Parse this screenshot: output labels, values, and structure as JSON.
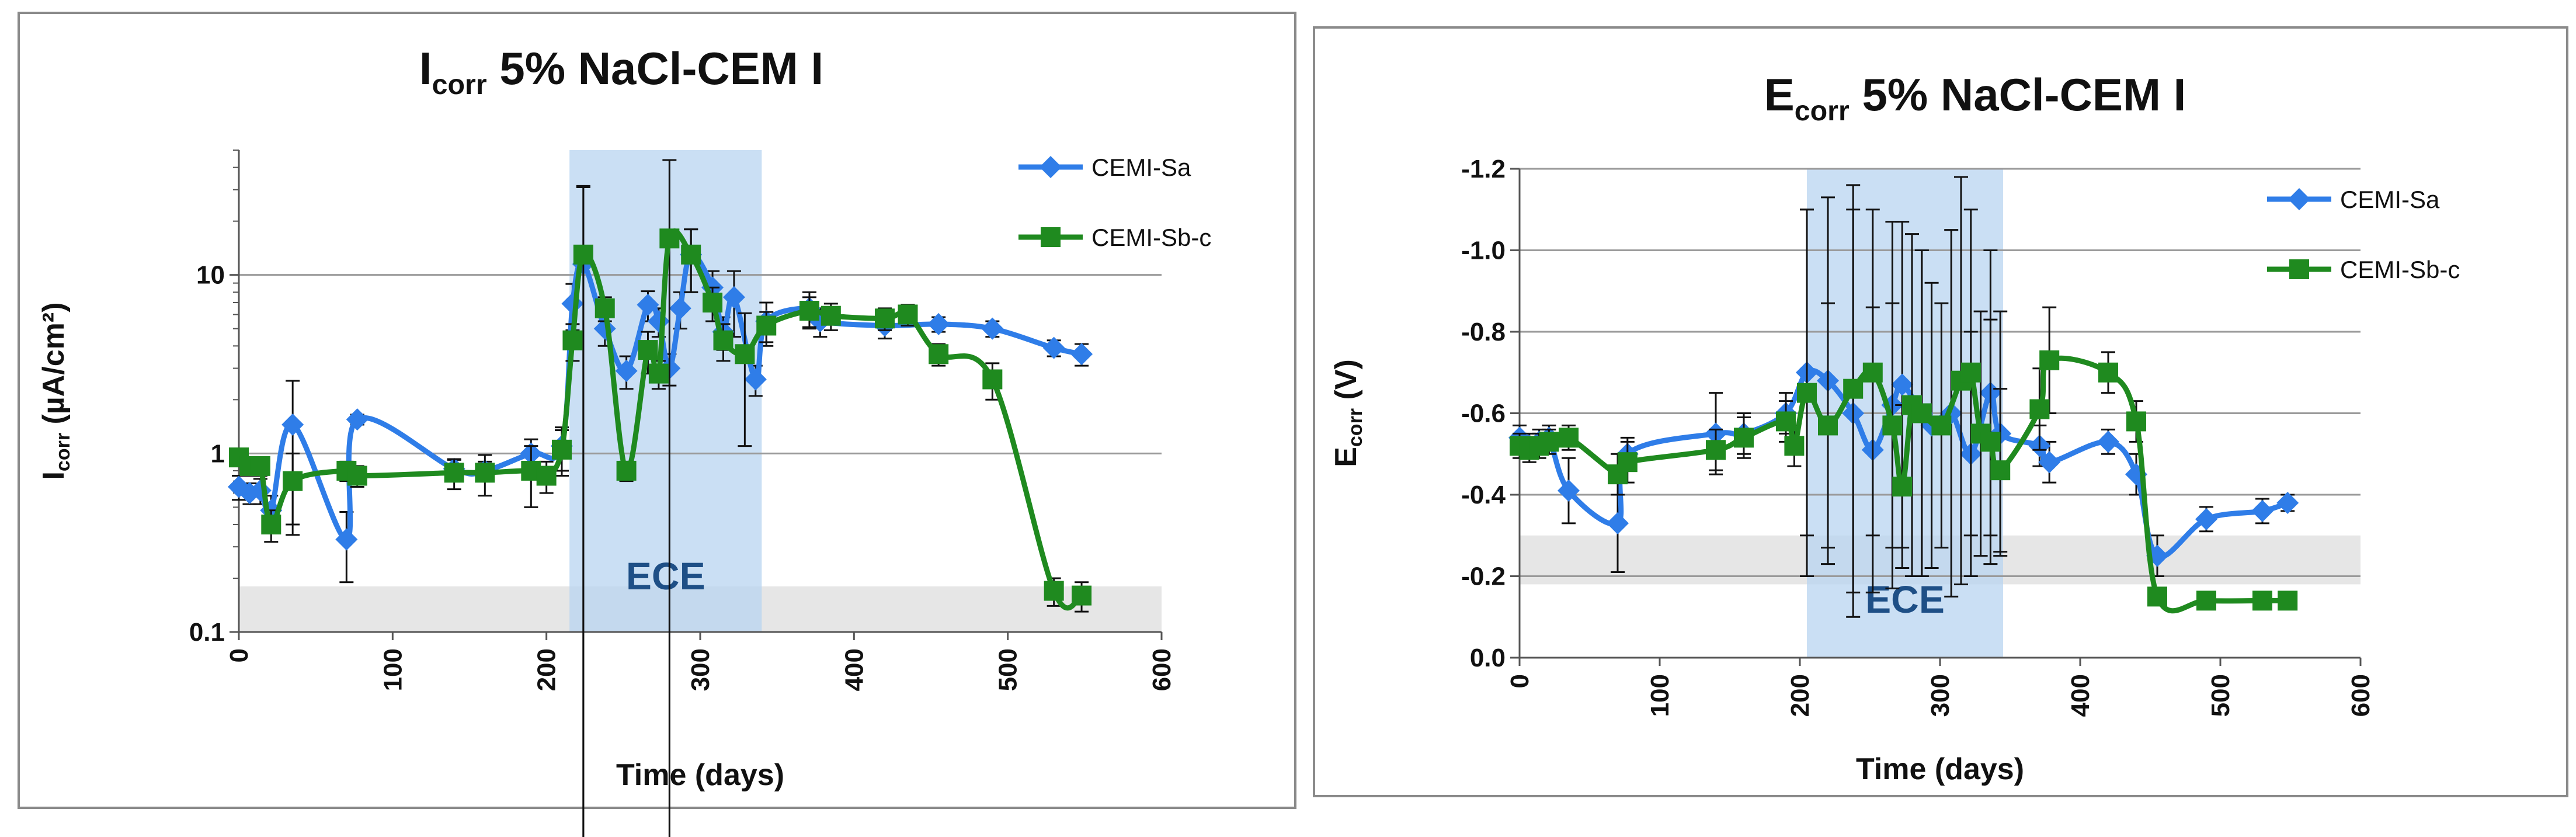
{
  "chart_data": [
    {
      "type": "line",
      "title_main": "I",
      "title_sub": "corr",
      "title_rest": " 5% NaCl-CEM I",
      "xlabel": "Time (days)",
      "ylabel_main": "I",
      "ylabel_sub": "corr",
      "ylabel_rest": " (µA/cm²)",
      "y_scale": "log",
      "xlim": [
        0,
        600
      ],
      "ylim": [
        0.1,
        50
      ],
      "x_ticks": [
        0,
        100,
        200,
        300,
        400,
        500,
        600
      ],
      "y_ticks": [
        0.1,
        1,
        10
      ],
      "y_tick_labels": [
        "0.1",
        "1",
        "10"
      ],
      "grid": "horizontal",
      "legend_position": "top-right",
      "ece_label": "ECE",
      "ece_range": [
        215,
        340
      ],
      "threshold_band": [
        0.1,
        0.18
      ],
      "series": [
        {
          "name": "CEMI-Sa",
          "color": "#2f7de8",
          "marker": "diamond",
          "points": [
            [
              0,
              0.65,
              0.1
            ],
            [
              7,
              0.6,
              0.08
            ],
            [
              14,
              0.62,
              0.1
            ],
            [
              21,
              0.48,
              0.1
            ],
            [
              35,
              1.45,
              1.1
            ],
            [
              70,
              0.33,
              0.14
            ],
            [
              77,
              1.55,
              0.1
            ],
            [
              140,
              0.82,
              0.1
            ],
            [
              160,
              0.8,
              0.1
            ],
            [
              190,
              1.0,
              0.2
            ],
            [
              210,
              1.1,
              0.3
            ],
            [
              217,
              6.9,
              2.0
            ],
            [
              224,
              11.5,
              20
            ],
            [
              238,
              5.0,
              1.0
            ],
            [
              252,
              2.9,
              0.6
            ],
            [
              266,
              6.8,
              1.3
            ],
            [
              273,
              5.5,
              1.0
            ],
            [
              280,
              3.0,
              0.6
            ],
            [
              287,
              6.5,
              1.5
            ],
            [
              294,
              13.0,
              5
            ],
            [
              308,
              8.5,
              2.0
            ],
            [
              315,
              4.8,
              1.0
            ],
            [
              322,
              7.5,
              3.0
            ],
            [
              336,
              2.6,
              0.5
            ],
            [
              343,
              5.5,
              1.5
            ],
            [
              371,
              6.5,
              1.5
            ],
            [
              378,
              5.5,
              1.0
            ],
            [
              420,
              5.2,
              0.8
            ],
            [
              455,
              5.3,
              0.5
            ],
            [
              490,
              5.0,
              0.5
            ],
            [
              530,
              3.9,
              0.4
            ],
            [
              548,
              3.6,
              0.5
            ]
          ]
        },
        {
          "name": "CEMI-Sb-c",
          "color": "#1f8a1f",
          "marker": "square",
          "points": [
            [
              0,
              0.95,
              0.1
            ],
            [
              7,
              0.85,
              0.1
            ],
            [
              14,
              0.85,
              0.1
            ],
            [
              21,
              0.4,
              0.08
            ],
            [
              35,
              0.7,
              0.3
            ],
            [
              70,
              0.8,
              0.1
            ],
            [
              77,
              0.75,
              0.1
            ],
            [
              140,
              0.78,
              0.15
            ],
            [
              160,
              0.78,
              0.2
            ],
            [
              190,
              0.8,
              0.3
            ],
            [
              200,
              0.75,
              0.15
            ],
            [
              210,
              1.05,
              0.3
            ],
            [
              217,
              4.3,
              1.0
            ],
            [
              224,
              13.0,
              18
            ],
            [
              238,
              6.5,
              1.0
            ],
            [
              252,
              0.8,
              0.1
            ],
            [
              266,
              3.8,
              1.0
            ],
            [
              273,
              2.8,
              0.5
            ],
            [
              280,
              16.0,
              28
            ],
            [
              294,
              13.0,
              5
            ],
            [
              308,
              7.0,
              1.5
            ],
            [
              315,
              4.3,
              1.0
            ],
            [
              329,
              3.6,
              2.5
            ],
            [
              343,
              5.2,
              1.0
            ],
            [
              371,
              6.3,
              1.2
            ],
            [
              385,
              5.9,
              1.0
            ],
            [
              420,
              5.7,
              0.8
            ],
            [
              435,
              6.0,
              0.8
            ],
            [
              455,
              3.6,
              0.5
            ],
            [
              490,
              2.6,
              0.6
            ],
            [
              530,
              0.17,
              0.03
            ],
            [
              548,
              0.16,
              0.03
            ]
          ]
        }
      ]
    },
    {
      "type": "line",
      "title_main": "E",
      "title_sub": "corr",
      "title_rest": " 5% NaCl-CEM I",
      "xlabel": "Time (days)",
      "ylabel_main": "E",
      "ylabel_sub": "corr",
      "ylabel_rest": " (V)",
      "y_scale": "reversed",
      "xlim": [
        0,
        600
      ],
      "ylim": [
        0,
        -1.2
      ],
      "x_ticks": [
        0,
        100,
        200,
        300,
        400,
        500,
        600
      ],
      "y_ticks": [
        0,
        -0.2,
        -0.4,
        -0.6,
        -0.8,
        -1.0,
        -1.2
      ],
      "y_tick_labels": [
        "0.0",
        "-0.2",
        "-0.4",
        "-0.6",
        "-0.8",
        "-1.0",
        "-1.2"
      ],
      "grid": "horizontal",
      "legend_position": "top-right",
      "ece_label": "ECE",
      "ece_range": [
        205,
        345
      ],
      "threshold_band": [
        -0.18,
        -0.3
      ],
      "series": [
        {
          "name": "CEMI-Sa",
          "color": "#2f7de8",
          "marker": "diamond",
          "points": [
            [
              0,
              -0.54,
              0.03
            ],
            [
              7,
              -0.52,
              0.03
            ],
            [
              14,
              -0.53,
              0.03
            ],
            [
              21,
              -0.54,
              0.03
            ],
            [
              35,
              -0.41,
              0.08
            ],
            [
              70,
              -0.33,
              0.12
            ],
            [
              77,
              -0.5,
              0.04
            ],
            [
              140,
              -0.55,
              0.1
            ],
            [
              160,
              -0.55,
              0.05
            ],
            [
              190,
              -0.6,
              0.05
            ],
            [
              205,
              -0.7,
              0.4
            ],
            [
              220,
              -0.68,
              0.45
            ],
            [
              238,
              -0.6,
              0.5
            ],
            [
              252,
              -0.51,
              0.35
            ],
            [
              266,
              -0.62,
              0.45
            ],
            [
              273,
              -0.67,
              0.4
            ],
            [
              287,
              -0.6,
              0.4
            ],
            [
              294,
              -0.57,
              0.35
            ],
            [
              308,
              -0.6,
              0.45
            ],
            [
              322,
              -0.5,
              0.3
            ],
            [
              336,
              -0.65,
              0.35
            ],
            [
              343,
              -0.55,
              0.3
            ],
            [
              371,
              -0.52,
              0.05
            ],
            [
              378,
              -0.48,
              0.05
            ],
            [
              420,
              -0.53,
              0.03
            ],
            [
              440,
              -0.45,
              0.05
            ],
            [
              455,
              -0.25,
              0.05
            ],
            [
              490,
              -0.34,
              0.03
            ],
            [
              530,
              -0.36,
              0.03
            ],
            [
              548,
              -0.38,
              0.02
            ]
          ]
        },
        {
          "name": "CEMI-Sb-c",
          "color": "#1f8a1f",
          "marker": "square",
          "points": [
            [
              0,
              -0.52,
              0.03
            ],
            [
              7,
              -0.51,
              0.03
            ],
            [
              14,
              -0.52,
              0.03
            ],
            [
              21,
              -0.53,
              0.03
            ],
            [
              35,
              -0.54,
              0.03
            ],
            [
              70,
              -0.45,
              0.05
            ],
            [
              77,
              -0.48,
              0.05
            ],
            [
              140,
              -0.51,
              0.05
            ],
            [
              160,
              -0.54,
              0.05
            ],
            [
              190,
              -0.58,
              0.05
            ],
            [
              196,
              -0.52,
              0.05
            ],
            [
              205,
              -0.65,
              0.45
            ],
            [
              220,
              -0.57,
              0.3
            ],
            [
              238,
              -0.66,
              0.5
            ],
            [
              252,
              -0.7,
              0.4
            ],
            [
              266,
              -0.57,
              0.3
            ],
            [
              273,
              -0.42,
              0.2
            ],
            [
              280,
              -0.62,
              0.42
            ],
            [
              287,
              -0.6,
              0.4
            ],
            [
              301,
              -0.57,
              0.3
            ],
            [
              315,
              -0.68,
              0.5
            ],
            [
              322,
              -0.7,
              0.4
            ],
            [
              329,
              -0.55,
              0.3
            ],
            [
              336,
              -0.53,
              0.3
            ],
            [
              343,
              -0.46,
              0.2
            ],
            [
              371,
              -0.61,
              0.1
            ],
            [
              378,
              -0.73,
              0.13
            ],
            [
              420,
              -0.7,
              0.05
            ],
            [
              440,
              -0.58,
              0.05
            ],
            [
              455,
              -0.15,
              0.02
            ],
            [
              490,
              -0.14,
              0.02
            ],
            [
              530,
              -0.14,
              0.02
            ],
            [
              548,
              -0.14,
              0.02
            ]
          ]
        }
      ]
    }
  ]
}
